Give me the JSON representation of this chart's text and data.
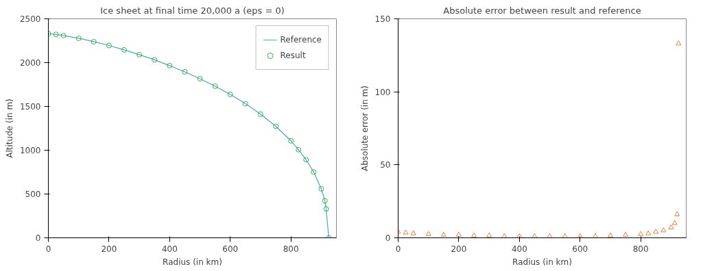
{
  "chart_data": [
    {
      "type": "line",
      "title": "Ice sheet at final time 20,000 a (eps = 0)",
      "xlabel": "Radius (in km)",
      "ylabel": "Altitude (in m)",
      "xlim": [
        0,
        950
      ],
      "ylim": [
        0,
        2500
      ],
      "xticks": [
        0,
        200,
        400,
        600,
        800
      ],
      "yticks": [
        0,
        500,
        1000,
        1500,
        2000,
        2500
      ],
      "grid": false,
      "legend": "top right",
      "x": [
        0,
        25,
        50,
        100,
        150,
        200,
        250,
        300,
        350,
        400,
        450,
        500,
        550,
        600,
        650,
        700,
        750,
        800,
        825,
        850,
        875,
        900,
        912,
        916,
        925
      ],
      "series": [
        {
          "name": "Reference",
          "type": "line",
          "color": "#4aa3c9",
          "marker": "none",
          "values": [
            2330,
            2322,
            2309,
            2278,
            2239,
            2195,
            2146,
            2091,
            2032,
            1966,
            1895,
            1817,
            1731,
            1637,
            1531,
            1412,
            1273,
            1107,
            1006,
            891,
            751,
            559,
            422,
            330,
            0
          ]
        },
        {
          "name": "Result",
          "type": "scatter",
          "color": "#3cb043",
          "marker": "circle",
          "values": [
            2330,
            2322,
            2309,
            2278,
            2239,
            2195,
            2146,
            2091,
            2032,
            1966,
            1895,
            1817,
            1731,
            1637,
            1531,
            1412,
            1273,
            1107,
            1006,
            891,
            751,
            559,
            422,
            330,
            0
          ]
        }
      ]
    },
    {
      "type": "scatter",
      "title": "Absolute error between result and reference",
      "xlabel": "Radius (in km)",
      "ylabel": "Absolute error (in m)",
      "xlim": [
        0,
        950
      ],
      "ylim": [
        0,
        150
      ],
      "xticks": [
        0,
        200,
        400,
        600,
        800
      ],
      "yticks": [
        0,
        50,
        100,
        150
      ],
      "grid": false,
      "marker": "triangle",
      "x": [
        0,
        25,
        50,
        100,
        150,
        200,
        250,
        300,
        350,
        400,
        450,
        500,
        550,
        600,
        650,
        700,
        750,
        800,
        825,
        850,
        875,
        900,
        912,
        920,
        925
      ],
      "series": [
        {
          "color": "#e07b47",
          "values": [
            4,
            3.5,
            3,
            2.5,
            2,
            2,
            1.5,
            1.5,
            1,
            1,
            1,
            1,
            1,
            1,
            1,
            1.5,
            2,
            2.5,
            3,
            4,
            5,
            7,
            10,
            16,
            133
          ]
        }
      ]
    }
  ]
}
